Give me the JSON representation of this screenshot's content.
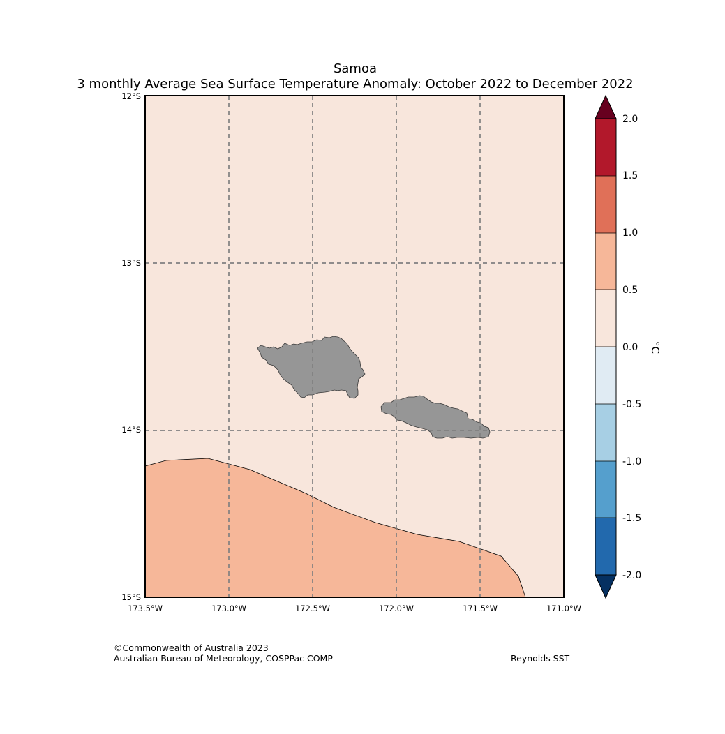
{
  "title": {
    "line1": "Samoa",
    "line2": "3 monthly Average Sea Surface Temperature Anomaly: October 2022 to December 2022"
  },
  "map": {
    "region": "Samoa",
    "lat_labels": [
      "12°S",
      "13°S",
      "14°S",
      "15°S"
    ],
    "lon_labels": [
      "173.5°W",
      "173.0°W",
      "172.5°W",
      "172.0°W",
      "171.5°W",
      "171.0°W"
    ],
    "lat_range": [
      -15,
      -12
    ],
    "lon_range": [
      -173.5,
      -171.0
    ],
    "regions": [
      {
        "name": "Anomaly 0.0 to 0.5 °C",
        "color": "#f8e6dc"
      },
      {
        "name": "Anomaly 0.5 to 1.0 °C",
        "color": "#f6b799"
      }
    ],
    "land_color": "#969696"
  },
  "colorbar": {
    "unit": "°C",
    "ticks": [
      "2.0",
      "1.5",
      "1.0",
      "0.5",
      "0.0",
      "-0.5",
      "-1.0",
      "-1.5",
      "-2.0"
    ],
    "over_color": "#67001f",
    "under_color": "#053061",
    "colors": [
      "#b2182b",
      "#e07058",
      "#f6b799",
      "#f8e6dc",
      "#e0ebf3",
      "#a7cfe4",
      "#559fcd",
      "#2269ad"
    ]
  },
  "credits": {
    "line1": "©Commonwealth of Australia 2023",
    "line2": "Australian Bureau of Meteorology, COSPPac COMP",
    "source": "Reynolds SST"
  }
}
